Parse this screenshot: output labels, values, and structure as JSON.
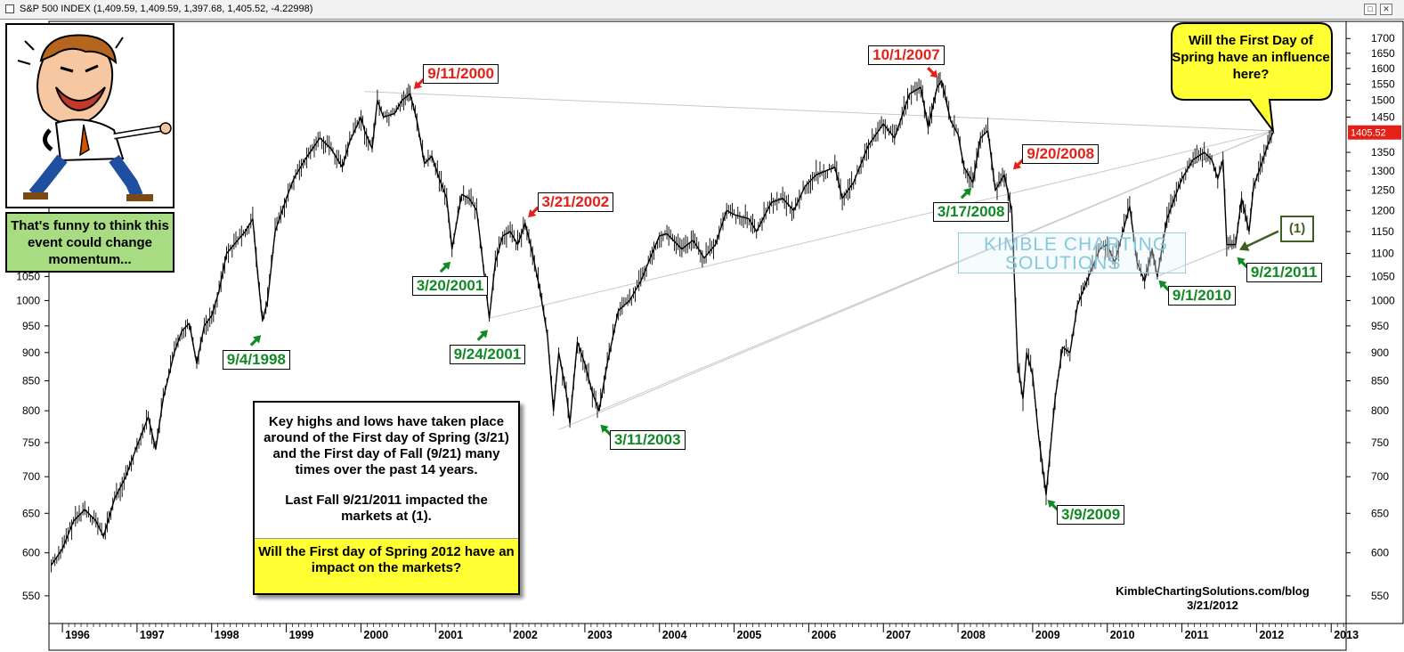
{
  "window": {
    "title": "S&P 500 INDEX (1,409.59, 1,409.59, 1,397.68, 1,405.52, -4.22998)",
    "min_glyph": "□",
    "close_glyph": "✕"
  },
  "chart_data": {
    "type": "line",
    "title": "S&P 500 INDEX (1,409.59, 1,409.59, 1,397.68, 1,405.52, -4.22998)",
    "xlabel": "",
    "ylabel": "",
    "y_scale": "log",
    "ylim": [
      520,
      1760
    ],
    "xlim": [
      1995.82,
      2013.2
    ],
    "grid": false,
    "line_color": "#000000",
    "x_ticks": [
      1996,
      1997,
      1998,
      1999,
      2000,
      2001,
      2002,
      2003,
      2004,
      2005,
      2006,
      2007,
      2008,
      2009,
      2010,
      2011,
      2012,
      2013
    ],
    "x_tick_labels": [
      "1996",
      "1997",
      "1998",
      "1999",
      "2000",
      "2001",
      "2002",
      "2003",
      "2004",
      "2005",
      "2006",
      "2007",
      "2008",
      "2009",
      "2010",
      "2011",
      "2012",
      "2013"
    ],
    "y_ticks_right": [
      550,
      600,
      650,
      700,
      750,
      800,
      850,
      900,
      950,
      1000,
      1050,
      1100,
      1150,
      1200,
      1250,
      1300,
      1350,
      1450,
      1500,
      1550,
      1600,
      1650,
      1700
    ],
    "y_tick_labels_right": [
      "550",
      "600",
      "650",
      "700",
      "750",
      "800",
      "850",
      "900",
      "950",
      "1000",
      "1050",
      "1100",
      "1150",
      "1200",
      "1250",
      "1300",
      "1350",
      "1450",
      "1500",
      "1550",
      "1600",
      "1650",
      "1700"
    ],
    "y_ticks_left": [
      550,
      600,
      650,
      700,
      750,
      800,
      850,
      900,
      950,
      1000,
      1050
    ],
    "y_tick_labels_left": [
      "550",
      "600",
      "650",
      "700",
      "750",
      "800",
      "850",
      "900",
      "950",
      "1000",
      "1050"
    ],
    "last_value_label": "1405.52",
    "last_value": 1405.52,
    "series": [
      {
        "values": [
          [
            1995.85,
            585
          ],
          [
            1996.0,
            605
          ],
          [
            1996.15,
            640
          ],
          [
            1996.3,
            655
          ],
          [
            1996.45,
            640
          ],
          [
            1996.55,
            620
          ],
          [
            1996.7,
            670
          ],
          [
            1996.85,
            700
          ],
          [
            1997.0,
            745
          ],
          [
            1997.15,
            790
          ],
          [
            1997.25,
            740
          ],
          [
            1997.35,
            820
          ],
          [
            1997.5,
            900
          ],
          [
            1997.6,
            940
          ],
          [
            1997.7,
            955
          ],
          [
            1997.8,
            880
          ],
          [
            1997.9,
            950
          ],
          [
            1998.0,
            970
          ],
          [
            1998.1,
            1020
          ],
          [
            1998.2,
            1100
          ],
          [
            1998.3,
            1120
          ],
          [
            1998.45,
            1150
          ],
          [
            1998.55,
            1180
          ],
          [
            1998.62,
            1050
          ],
          [
            1998.68,
            960
          ],
          [
            1998.75,
            1000
          ],
          [
            1998.85,
            1150
          ],
          [
            1999.0,
            1230
          ],
          [
            1999.1,
            1280
          ],
          [
            1999.25,
            1330
          ],
          [
            1999.45,
            1390
          ],
          [
            1999.6,
            1360
          ],
          [
            1999.75,
            1310
          ],
          [
            1999.85,
            1380
          ],
          [
            2000.0,
            1450
          ],
          [
            2000.05,
            1410
          ],
          [
            2000.15,
            1360
          ],
          [
            2000.22,
            1500
          ],
          [
            2000.3,
            1450
          ],
          [
            2000.45,
            1460
          ],
          [
            2000.55,
            1500
          ],
          [
            2000.66,
            1520
          ],
          [
            2000.75,
            1440
          ],
          [
            2000.85,
            1320
          ],
          [
            2000.95,
            1340
          ],
          [
            2001.05,
            1280
          ],
          [
            2001.15,
            1230
          ],
          [
            2001.22,
            1110
          ],
          [
            2001.35,
            1240
          ],
          [
            2001.45,
            1230
          ],
          [
            2001.55,
            1200
          ],
          [
            2001.62,
            1100
          ],
          [
            2001.72,
            965
          ],
          [
            2001.8,
            1080
          ],
          [
            2001.9,
            1140
          ],
          [
            2002.0,
            1150
          ],
          [
            2002.1,
            1120
          ],
          [
            2002.2,
            1170
          ],
          [
            2002.3,
            1100
          ],
          [
            2002.4,
            1020
          ],
          [
            2002.5,
            930
          ],
          [
            2002.58,
            800
          ],
          [
            2002.65,
            900
          ],
          [
            2002.75,
            830
          ],
          [
            2002.8,
            780
          ],
          [
            2002.9,
            920
          ],
          [
            2003.0,
            880
          ],
          [
            2003.1,
            830
          ],
          [
            2003.19,
            800
          ],
          [
            2003.3,
            880
          ],
          [
            2003.45,
            980
          ],
          [
            2003.6,
            1000
          ],
          [
            2003.75,
            1040
          ],
          [
            2003.9,
            1100
          ],
          [
            2004.0,
            1140
          ],
          [
            2004.1,
            1145
          ],
          [
            2004.3,
            1110
          ],
          [
            2004.45,
            1130
          ],
          [
            2004.6,
            1090
          ],
          [
            2004.75,
            1120
          ],
          [
            2004.9,
            1200
          ],
          [
            2005.0,
            1190
          ],
          [
            2005.2,
            1180
          ],
          [
            2005.3,
            1150
          ],
          [
            2005.5,
            1220
          ],
          [
            2005.65,
            1230
          ],
          [
            2005.8,
            1200
          ],
          [
            2005.95,
            1260
          ],
          [
            2006.1,
            1290
          ],
          [
            2006.35,
            1310
          ],
          [
            2006.45,
            1230
          ],
          [
            2006.6,
            1270
          ],
          [
            2006.8,
            1370
          ],
          [
            2007.0,
            1430
          ],
          [
            2007.15,
            1390
          ],
          [
            2007.35,
            1520
          ],
          [
            2007.5,
            1540
          ],
          [
            2007.6,
            1420
          ],
          [
            2007.72,
            1540
          ],
          [
            2007.78,
            1560
          ],
          [
            2007.9,
            1440
          ],
          [
            2008.0,
            1400
          ],
          [
            2008.08,
            1310
          ],
          [
            2008.2,
            1270
          ],
          [
            2008.3,
            1390
          ],
          [
            2008.4,
            1410
          ],
          [
            2008.5,
            1250
          ],
          [
            2008.62,
            1290
          ],
          [
            2008.72,
            1200
          ],
          [
            2008.8,
            880
          ],
          [
            2008.87,
            820
          ],
          [
            2008.92,
            900
          ],
          [
            2009.0,
            860
          ],
          [
            2009.08,
            760
          ],
          [
            2009.18,
            675
          ],
          [
            2009.3,
            820
          ],
          [
            2009.4,
            910
          ],
          [
            2009.5,
            900
          ],
          [
            2009.6,
            990
          ],
          [
            2009.75,
            1050
          ],
          [
            2009.9,
            1110
          ],
          [
            2010.0,
            1120
          ],
          [
            2010.1,
            1080
          ],
          [
            2010.3,
            1210
          ],
          [
            2010.4,
            1080
          ],
          [
            2010.5,
            1040
          ],
          [
            2010.6,
            1110
          ],
          [
            2010.67,
            1050
          ],
          [
            2010.8,
            1180
          ],
          [
            2010.9,
            1230
          ],
          [
            2011.0,
            1280
          ],
          [
            2011.15,
            1330
          ],
          [
            2011.3,
            1350
          ],
          [
            2011.4,
            1330
          ],
          [
            2011.48,
            1280
          ],
          [
            2011.55,
            1330
          ],
          [
            2011.6,
            1120
          ],
          [
            2011.72,
            1120
          ],
          [
            2011.8,
            1230
          ],
          [
            2011.9,
            1150
          ],
          [
            2011.96,
            1260
          ],
          [
            2012.05,
            1310
          ],
          [
            2012.15,
            1370
          ],
          [
            2012.22,
            1405.52
          ]
        ]
      }
    ],
    "trendlines": [
      [
        [
          2000.05,
          1527
        ],
        [
          2012.22,
          1410
        ]
      ],
      [
        [
          2001.72,
          965
        ],
        [
          2012.22,
          1410
        ]
      ],
      [
        [
          2002.65,
          770
        ],
        [
          2012.22,
          1410
        ]
      ],
      [
        [
          2003.19,
          800
        ],
        [
          2012.22,
          1410
        ]
      ],
      [
        [
          2008.85,
          1140
        ],
        [
          2012.22,
          1410
        ]
      ],
      [
        [
          2010.67,
          1050
        ],
        [
          2011.72,
          1120
        ]
      ]
    ],
    "annotations": [
      {
        "label": "9/11/2000",
        "color": "red",
        "date": 2000.69,
        "value": 1530,
        "arrow": "down-left"
      },
      {
        "label": "3/21/2002",
        "color": "red",
        "date": 2002.22,
        "value": 1180,
        "arrow": "down-left"
      },
      {
        "label": "10/1/2007",
        "color": "red",
        "date": 2007.75,
        "value": 1565,
        "arrow": "down-right"
      },
      {
        "label": "9/20/2008",
        "color": "red",
        "date": 2008.72,
        "value": 1300,
        "arrow": "down-left"
      },
      {
        "label": "9/4/1998",
        "color": "green",
        "date": 1998.68,
        "value": 935,
        "arrow": "up-right"
      },
      {
        "label": "3/20/2001",
        "color": "green",
        "date": 2001.22,
        "value": 1085,
        "arrow": "up-right"
      },
      {
        "label": "9/24/2001",
        "color": "green",
        "date": 2001.72,
        "value": 945,
        "arrow": "up-right"
      },
      {
        "label": "3/11/2003",
        "color": "green",
        "date": 2003.19,
        "value": 780,
        "arrow": "up-left"
      },
      {
        "label": "3/17/2008",
        "color": "green",
        "date": 2008.2,
        "value": 1260,
        "arrow": "up-right"
      },
      {
        "label": "3/9/2009",
        "color": "green",
        "date": 2009.18,
        "value": 670,
        "arrow": "up-left"
      },
      {
        "label": "9/1/2010",
        "color": "green",
        "date": 2010.67,
        "value": 1045,
        "arrow": "up-left"
      },
      {
        "label": "9/21/2011",
        "color": "green",
        "date": 2011.72,
        "value": 1095,
        "arrow": "up-left"
      },
      {
        "label": "(1)",
        "color": "olive",
        "date": 2011.72,
        "value": 1110,
        "arrow": "left"
      }
    ]
  },
  "sidebar": {
    "funny_text": "That's funny to think this event could change momentum..."
  },
  "info_box": {
    "para1": "Key highs and lows have taken place around of the First day of Spring (3/21) and the First day of Fall (9/21) many times over the past 14 years.",
    "para2": "Last Fall 9/21/2011 impacted the markets at (1).",
    "question": "Will the First day of Spring 2012 have an impact on the markets?"
  },
  "bubble": {
    "text": "Will the First Day of Spring have an influence here?"
  },
  "watermark": {
    "line1": "KIMBLE CHARTING",
    "line2": "SOLUTIONS"
  },
  "footer": {
    "site": "KimbleChartingSolutions.com/blog",
    "date": "3/21/2012"
  },
  "colors": {
    "red": "#e32119",
    "green": "#118a23",
    "olive": "#3e5f1f",
    "bubble_fill": "#ffff33",
    "funny_fill": "#a8dc82",
    "last_value_tag": "#e32119"
  }
}
